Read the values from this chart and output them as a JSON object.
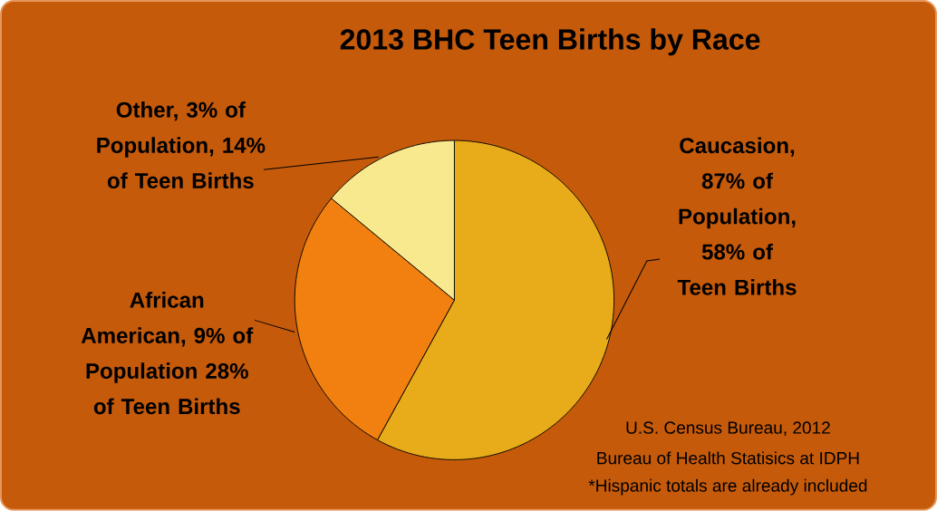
{
  "chart_data": {
    "type": "pie",
    "title": "2013 BHC Teen Births by Race",
    "categories": [
      "Caucasion, 87% of Population, 58% of Teen Births",
      "African American, 9% of Population 28% of Teen Births",
      "Other, 3% of Population, 14% of Teen Births"
    ],
    "values": [
      58,
      28,
      14
    ],
    "colors": [
      "#e8ac1a",
      "#f28010",
      "#f8e98e"
    ],
    "annotations": [
      "U.S. Census Bureau, 2012",
      "Bureau of Health Statisics at IDPH",
      "*Hispanic totals are already included"
    ]
  }
}
